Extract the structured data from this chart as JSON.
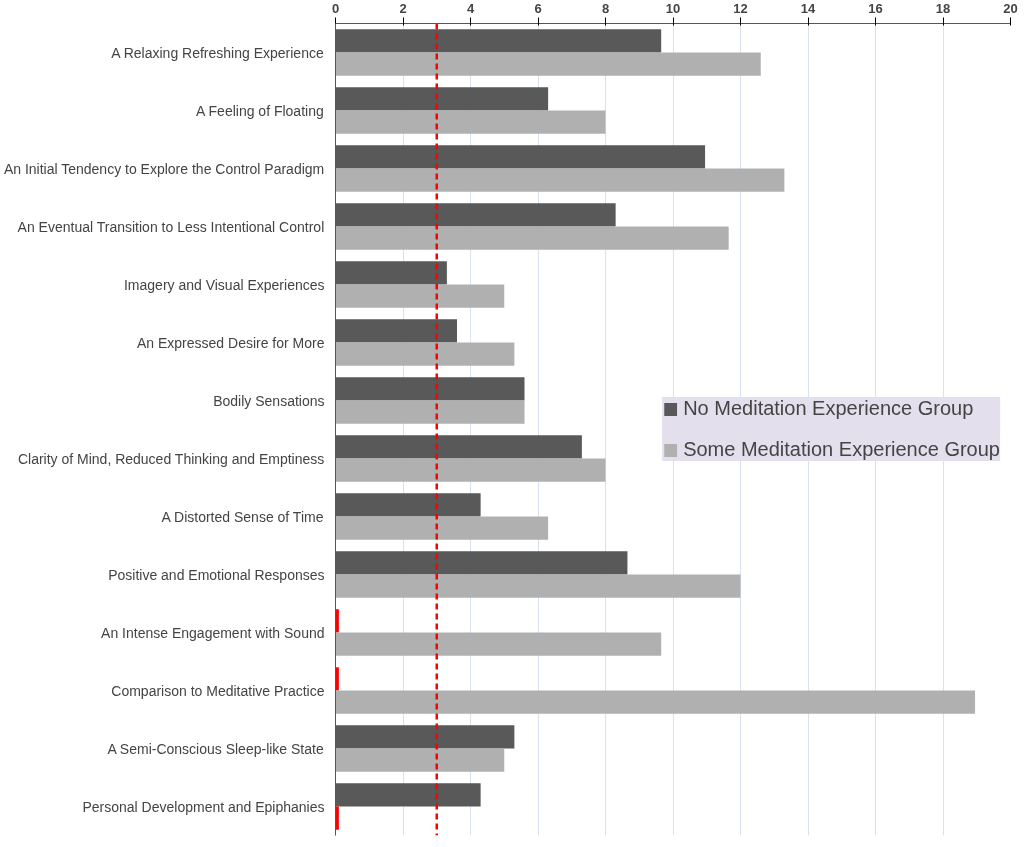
{
  "chart_data": {
    "type": "bar",
    "orientation": "horizontal",
    "categories": [
      "A Relaxing Refreshing Experience",
      "A Feeling of Floating",
      "An Initial Tendency to Explore the Control Paradigm",
      "An Eventual Transition to Less Intentional Control",
      "Imagery and Visual Experiences",
      "An Expressed Desire for More",
      "Bodily Sensations",
      "Clarity of Mind, Reduced Thinking and Emptiness",
      "A Distorted Sense of Time",
      "Positive and Emotional Responses",
      "An Intense Engagement with Sound",
      "Comparison to Meditative Practice",
      "A Semi-Conscious Sleep-like State",
      "Personal Development and Epiphanies"
    ],
    "series": [
      {
        "name": "No Meditation Experience Group",
        "color": "#595959",
        "colors": [
          "#595959",
          "#595959",
          "#595959",
          "#595959",
          "#595959",
          "#595959",
          "#595959",
          "#595959",
          "#595959",
          "#595959",
          "#ff0000",
          "#ff0000",
          "#595959",
          "#595959"
        ],
        "values": [
          9.65,
          6.3,
          10.95,
          8.3,
          3.3,
          3.6,
          5.6,
          7.3,
          4.3,
          8.65,
          0.1,
          0.1,
          5.3,
          4.3
        ]
      },
      {
        "name": "Some Meditation Experience Group",
        "color": "#b0b0b0",
        "colors": [
          "#b0b0b0",
          "#b0b0b0",
          "#b0b0b0",
          "#b0b0b0",
          "#b0b0b0",
          "#b0b0b0",
          "#b0b0b0",
          "#b0b0b0",
          "#b0b0b0",
          "#b0b0b0",
          "#b0b0b0",
          "#b0b0b0",
          "#b0b0b0",
          "#ff0000"
        ],
        "values": [
          12.6,
          8.0,
          13.3,
          11.65,
          5.0,
          5.3,
          5.6,
          8.0,
          6.3,
          12.0,
          9.65,
          18.95,
          5.0,
          0.1
        ]
      }
    ],
    "xlim": [
      0,
      20
    ],
    "xticks": [
      0,
      2,
      4,
      6,
      8,
      10,
      12,
      14,
      16,
      18,
      20
    ],
    "ref_lines": [
      {
        "axis": "x",
        "value": 3,
        "color": "#ff0000",
        "line_style": "dashed"
      }
    ],
    "grid": "x",
    "legend": "right"
  }
}
